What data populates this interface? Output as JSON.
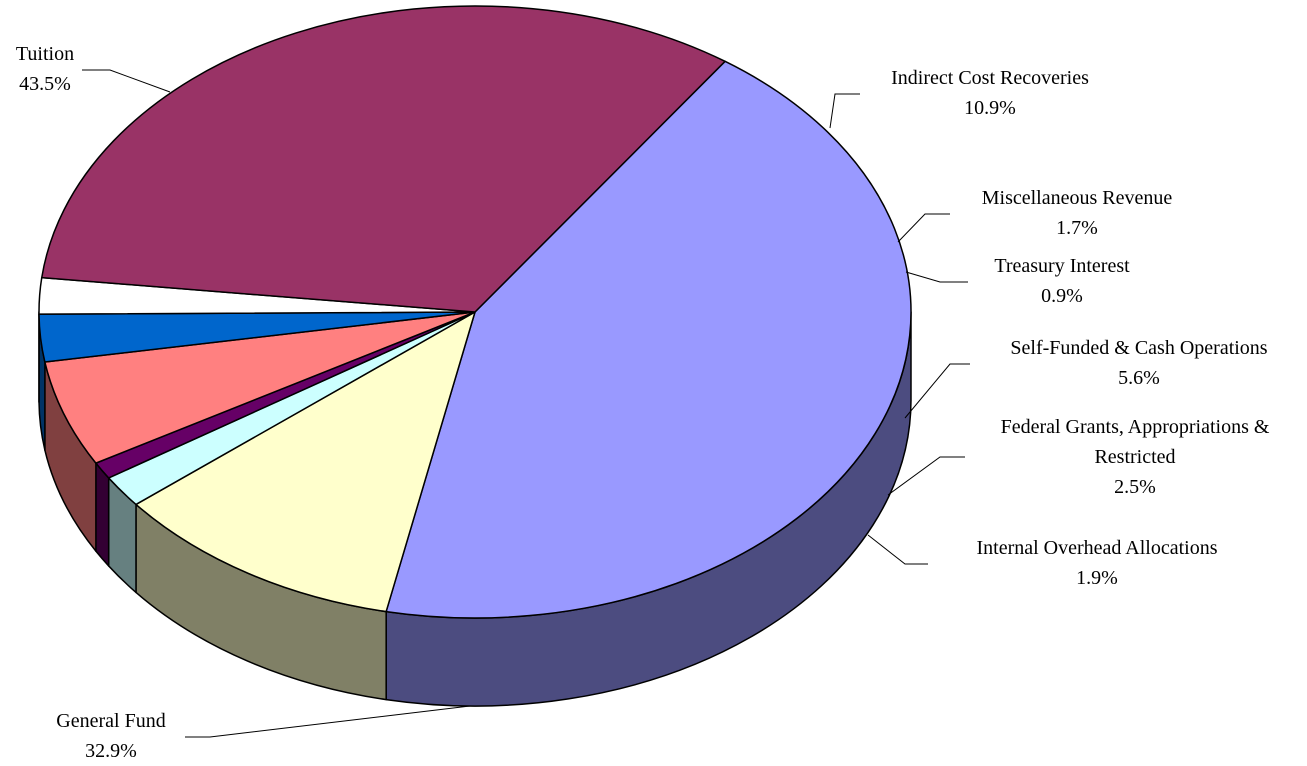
{
  "chart_data": {
    "type": "pie",
    "title": "",
    "style": "3d-tilted",
    "slices": [
      {
        "label": "Tuition",
        "label_lines": [
          "Tuition"
        ],
        "value": 43.5,
        "display": "43.5%",
        "color": "#9999ff",
        "side_color": "#4c4c80"
      },
      {
        "label": "Indirect Cost Recoveries",
        "label_lines": [
          "Indirect Cost Recoveries"
        ],
        "value": 10.9,
        "display": "10.9%",
        "color": "#ffffcc",
        "side_color": "#808066"
      },
      {
        "label": "Miscellaneous Revenue",
        "label_lines": [
          "Miscellaneous Revenue"
        ],
        "value": 1.7,
        "display": "1.7%",
        "color": "#ccffff",
        "side_color": "#668080"
      },
      {
        "label": "Treasury Interest",
        "label_lines": [
          "Treasury Interest"
        ],
        "value": 0.9,
        "display": "0.9%",
        "color": "#660066",
        "side_color": "#330033"
      },
      {
        "label": "Self-Funded & Cash Operations",
        "label_lines": [
          "Self-Funded & Cash Operations"
        ],
        "value": 5.6,
        "display": "5.6%",
        "color": "#ff8080",
        "side_color": "#804040"
      },
      {
        "label": "Federal Grants, Appropriations & Restricted",
        "label_lines": [
          "Federal Grants, Appropriations &",
          "Restricted"
        ],
        "value": 2.5,
        "display": "2.5%",
        "color": "#0066cc",
        "side_color": "#003366"
      },
      {
        "label": "Internal Overhead Allocations",
        "label_lines": [
          "Internal Overhead Allocations"
        ],
        "value": 1.9,
        "display": "1.9%",
        "color": "#ffffff",
        "side_color": "#808080"
      },
      {
        "label": "General Fund",
        "label_lines": [
          "General Fund"
        ],
        "value": 32.9,
        "display": "32.9%",
        "color": "#993366",
        "side_color": "#4d1a33"
      }
    ]
  }
}
